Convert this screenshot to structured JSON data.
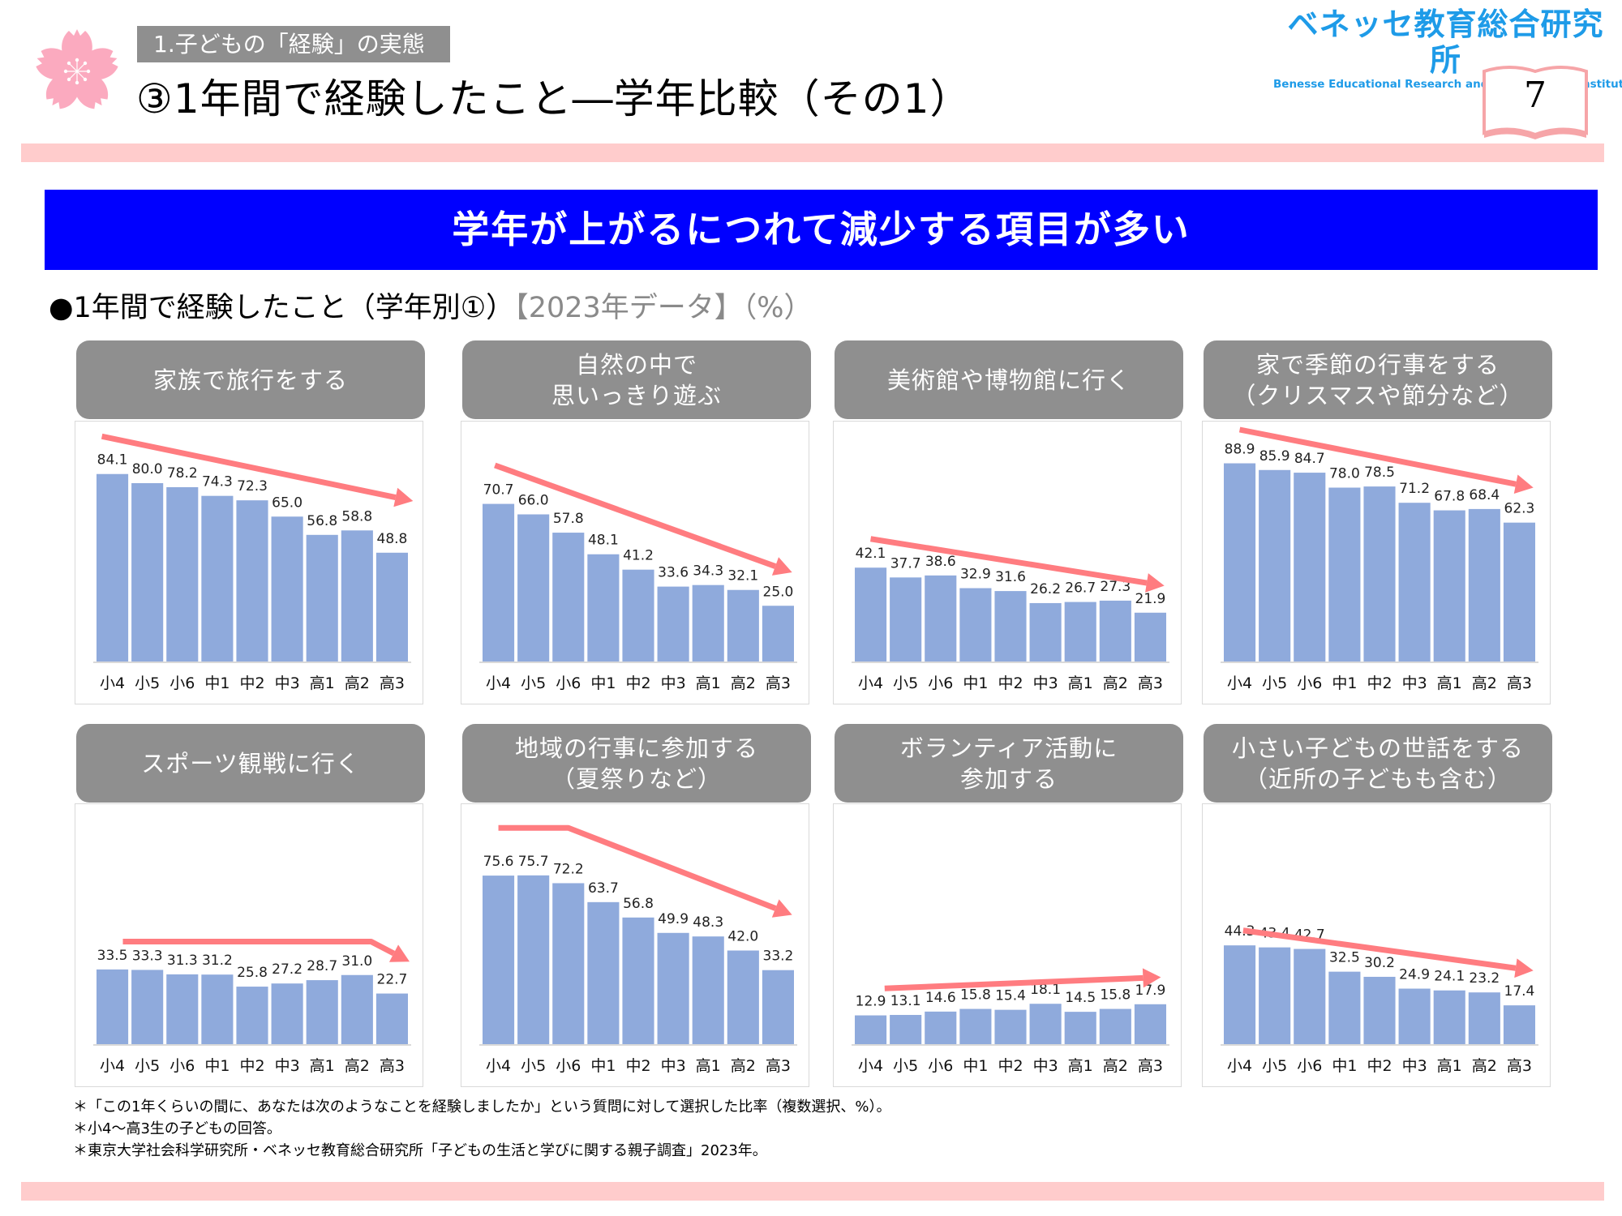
{
  "header": {
    "section_label": "1.子どもの「経験」の実態",
    "title": "③1年間で経験したこと―学年比較（その1）",
    "logo_jp": "ベネッセ教育総合研究所",
    "logo_en": "Benesse  Educational Research and Development Institute",
    "page_number": "7"
  },
  "banner": {
    "text": "学年が上がるにつれて減少する項目が多い"
  },
  "subtitle": {
    "main": "●1年間で経験したこと（学年別①）",
    "tag": "【2023年データ】（%）"
  },
  "colors": {
    "bar": "#8FAADC",
    "trend": "#FF7C80",
    "banner": "#0000FF",
    "band": "#FFCCCC",
    "header_box": "#8F8F8F",
    "logo": "#1E9BE8"
  },
  "chart_data": [
    {
      "type": "bar",
      "title": "家族で旅行をする",
      "title_lines": [
        "家族で旅行をする"
      ],
      "categories": [
        "小4",
        "小5",
        "小6",
        "中1",
        "中2",
        "中3",
        "高1",
        "高2",
        "高3"
      ],
      "values": [
        84.1,
        80.0,
        78.2,
        74.3,
        72.3,
        65.0,
        56.8,
        58.8,
        48.8
      ],
      "labels": [
        "84.1",
        "80.0",
        "78.2",
        "74.3",
        "72.3",
        "65.0",
        "56.8",
        "58.8",
        "48.8"
      ],
      "ylim": [
        0,
        100
      ],
      "unit": "%",
      "trend": "down",
      "trend_points": [
        [
          -0.3,
          101
        ],
        [
          8.6,
          72
        ]
      ]
    },
    {
      "type": "bar",
      "title": "自然の中で思いっきり遊ぶ",
      "title_lines": [
        "自然の中で",
        "思いっきり遊ぶ"
      ],
      "categories": [
        "小4",
        "小5",
        "小6",
        "中1",
        "中2",
        "中3",
        "高1",
        "高2",
        "高3"
      ],
      "values": [
        70.7,
        66.0,
        57.8,
        48.1,
        41.2,
        33.6,
        34.3,
        32.1,
        25.0
      ],
      "labels": [
        "70.7",
        "66.0",
        "57.8",
        "48.1",
        "41.2",
        "33.6",
        "34.3",
        "32.1",
        "25.0"
      ],
      "ylim": [
        0,
        100
      ],
      "unit": "%",
      "trend": "down",
      "trend_points": [
        [
          -0.1,
          88
        ],
        [
          8.4,
          40
        ]
      ]
    },
    {
      "type": "bar",
      "title": "美術館や博物館に行く",
      "title_lines": [
        "美術館や博物館に行く"
      ],
      "categories": [
        "小4",
        "小5",
        "小6",
        "中1",
        "中2",
        "中3",
        "高1",
        "高2",
        "高3"
      ],
      "values": [
        42.1,
        37.7,
        38.6,
        32.9,
        31.6,
        26.2,
        26.7,
        27.3,
        21.9
      ],
      "labels": [
        "42.1",
        "37.7",
        "38.6",
        "32.9",
        "31.6",
        "26.2",
        "26.7",
        "27.3",
        "21.9"
      ],
      "ylim": [
        0,
        100
      ],
      "unit": "%",
      "trend": "down",
      "trend_points": [
        [
          0.0,
          55
        ],
        [
          8.4,
          34
        ]
      ]
    },
    {
      "type": "bar",
      "title": "家で季節の行事をする（クリスマスや節分など）",
      "title_lines": [
        "家で季節の行事をする",
        "（クリスマスや節分など）"
      ],
      "categories": [
        "小4",
        "小5",
        "小6",
        "中1",
        "中2",
        "中3",
        "高1",
        "高2",
        "高3"
      ],
      "values": [
        88.9,
        85.9,
        84.7,
        78.0,
        78.5,
        71.2,
        67.8,
        68.4,
        62.3
      ],
      "labels": [
        "88.9",
        "85.9",
        "84.7",
        "78.0",
        "78.5",
        "71.2",
        "67.8",
        "68.4",
        "62.3"
      ],
      "ylim": [
        0,
        100
      ],
      "unit": "%",
      "trend": "down",
      "trend_points": [
        [
          0.0,
          104
        ],
        [
          8.4,
          78
        ]
      ]
    },
    {
      "type": "bar",
      "title": "スポーツ観戦に行く",
      "title_lines": [
        "スポーツ観戦に行く"
      ],
      "categories": [
        "小4",
        "小5",
        "小6",
        "中1",
        "中2",
        "中3",
        "高1",
        "高2",
        "高3"
      ],
      "values": [
        33.5,
        33.3,
        31.3,
        31.2,
        25.8,
        27.2,
        28.7,
        31.0,
        22.7
      ],
      "labels": [
        "33.5",
        "33.3",
        "31.3",
        "31.2",
        "25.8",
        "27.2",
        "28.7",
        "31.0",
        "22.7"
      ],
      "ylim": [
        0,
        100
      ],
      "unit": "%",
      "trend": "flat-then-down",
      "trend_points": [
        [
          0.3,
          46
        ],
        [
          7.4,
          46
        ],
        [
          8.5,
          37
        ]
      ]
    },
    {
      "type": "bar",
      "title": "地域の行事に参加する（夏祭りなど）",
      "title_lines": [
        "地域の行事に参加する",
        "（夏祭りなど）"
      ],
      "categories": [
        "小4",
        "小5",
        "小6",
        "中1",
        "中2",
        "中3",
        "高1",
        "高2",
        "高3"
      ],
      "values": [
        75.6,
        75.7,
        72.2,
        63.7,
        56.8,
        49.9,
        48.3,
        42.0,
        33.2
      ],
      "labels": [
        "75.6",
        "75.7",
        "72.2",
        "63.7",
        "56.8",
        "49.9",
        "48.3",
        "42.0",
        "33.2"
      ],
      "ylim": [
        0,
        100
      ],
      "unit": "%",
      "trend": "flat-then-down",
      "trend_points": [
        [
          0.0,
          97
        ],
        [
          2.0,
          97
        ],
        [
          8.4,
          58
        ]
      ]
    },
    {
      "type": "bar",
      "title": "ボランティア活動に参加する",
      "title_lines": [
        "ボランティア活動に",
        "参加する"
      ],
      "categories": [
        "小4",
        "小5",
        "小6",
        "中1",
        "中2",
        "中3",
        "高1",
        "高2",
        "高3"
      ],
      "values": [
        12.9,
        13.1,
        14.6,
        15.8,
        15.4,
        18.1,
        14.5,
        15.8,
        17.9
      ],
      "labels": [
        "12.9",
        "13.1",
        "14.6",
        "15.8",
        "15.4",
        "18.1",
        "14.5",
        "15.8",
        "17.9"
      ],
      "ylim": [
        0,
        100
      ],
      "unit": "%",
      "trend": "up",
      "trend_points": [
        [
          0.4,
          25
        ],
        [
          8.3,
          30
        ]
      ]
    },
    {
      "type": "bar",
      "title": "小さい子どもの世話をする（近所の子どもも含む）",
      "title_lines": [
        "小さい子どもの世話をする",
        "（近所の子どもも含む）"
      ],
      "categories": [
        "小4",
        "小5",
        "小6",
        "中1",
        "中2",
        "中3",
        "高1",
        "高2",
        "高3"
      ],
      "values": [
        44.3,
        43.4,
        42.7,
        32.5,
        30.2,
        24.9,
        24.1,
        23.2,
        17.4
      ],
      "labels": [
        "44.3",
        "43.4",
        "42.7",
        "32.5",
        "30.2",
        "24.9",
        "24.1",
        "23.2",
        "17.4"
      ],
      "ylim": [
        0,
        100
      ],
      "unit": "%",
      "trend": "down",
      "trend_points": [
        [
          0.1,
          51
        ],
        [
          8.4,
          33
        ]
      ]
    }
  ],
  "footnotes": [
    "＊「この1年くらいの間に、あなたは次のようなことを経験しましたか」という質問に対して選択した比率（複数選択、%）。",
    "＊小4～高3生の子どもの回答。",
    "＊東京大学社会科学研究所・ベネッセ教育総合研究所「子どもの生活と学びに関する親子調査」2023年。"
  ]
}
